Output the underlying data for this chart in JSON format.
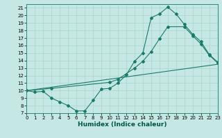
{
  "background_color": "#c6e8e4",
  "grid_color": "#aad4cc",
  "line_color": "#1a7a6a",
  "marker_color": "#1a7a6a",
  "line1_x": [
    0,
    1,
    2,
    3,
    4,
    5,
    6,
    7,
    8,
    9,
    10,
    11,
    12,
    13,
    14,
    15,
    16,
    17,
    18,
    19,
    20,
    21,
    22,
    23
  ],
  "line1_y": [
    10,
    9.8,
    9.9,
    9.0,
    8.5,
    8.0,
    7.3,
    7.3,
    8.7,
    10.2,
    10.3,
    11.0,
    12.1,
    13.9,
    15.0,
    19.7,
    20.2,
    21.1,
    20.2,
    18.8,
    17.5,
    16.5,
    14.8,
    13.8
  ],
  "line2_x": [
    0,
    3,
    10,
    11,
    13,
    14,
    15,
    16,
    17,
    19,
    20,
    21,
    22,
    23
  ],
  "line2_y": [
    10,
    10.3,
    11.1,
    11.5,
    13.0,
    13.9,
    15.2,
    16.9,
    18.5,
    18.5,
    17.3,
    16.2,
    14.7,
    13.7
  ],
  "line3_x": [
    0,
    23
  ],
  "line3_y": [
    10,
    13.5
  ],
  "xlim": [
    0,
    23
  ],
  "ylim": [
    7,
    21.5
  ],
  "ytick_labels": [
    "7",
    "8",
    "9",
    "10",
    "11",
    "12",
    "13",
    "14",
    "15",
    "16",
    "17",
    "18",
    "19",
    "20",
    "21"
  ],
  "ytick_vals": [
    7,
    8,
    9,
    10,
    11,
    12,
    13,
    14,
    15,
    16,
    17,
    18,
    19,
    20,
    21
  ],
  "xtick_vals": [
    0,
    1,
    2,
    3,
    4,
    5,
    6,
    7,
    8,
    9,
    10,
    11,
    12,
    13,
    14,
    15,
    16,
    17,
    18,
    19,
    20,
    21,
    22,
    23
  ],
  "xtick_labels": [
    "0",
    "1",
    "2",
    "3",
    "4",
    "5",
    "6",
    "7",
    "8",
    "9",
    "10",
    "11",
    "12",
    "13",
    "14",
    "15",
    "16",
    "17",
    "18",
    "19",
    "20",
    "21",
    "22",
    "23"
  ],
  "xlabel": "Humidex (Indice chaleur)",
  "xlabel_fontsize": 6.5,
  "tick_fontsize": 5.0
}
